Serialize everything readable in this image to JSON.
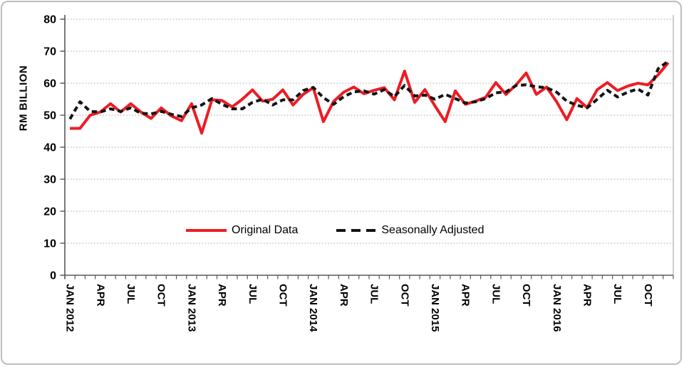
{
  "chart_data": {
    "type": "line",
    "title": "",
    "ylabel": "RM BILLION",
    "ylim": [
      0,
      80
    ],
    "ytick_step": 10,
    "yticks": [
      0,
      10,
      20,
      30,
      40,
      50,
      60,
      70,
      80
    ],
    "grid": "horizontal-dotted",
    "legend_position": "inside-lower-center",
    "n_months": 60,
    "x_label_every_months": 3,
    "x_labels": [
      "JAN 2012",
      "APR",
      "JUL",
      "OCT",
      "JAN 2013",
      "APR",
      "JUL",
      "OCT",
      "JAN 2014",
      "APR",
      "JUL",
      "OCT",
      "JAN 2015",
      "APR",
      "JUL",
      "OCT",
      "JAN 2016",
      "APR",
      "JUL",
      "OCT"
    ],
    "x_range_note": "monthly data JAN 2012 - DEC 2016",
    "series": [
      {
        "name": "Original Data",
        "color": "#ed1c24",
        "style": "solid",
        "values": [
          45.9,
          45.9,
          50.0,
          51.0,
          53.6,
          51.0,
          53.6,
          51.0,
          49.0,
          52.3,
          49.8,
          48.3,
          53.6,
          44.4,
          54.8,
          54.6,
          52.6,
          55.0,
          57.9,
          54.4,
          55.0,
          57.9,
          53.2,
          56.5,
          58.6,
          48.0,
          54.3,
          57.2,
          58.8,
          56.7,
          57.8,
          58.6,
          54.8,
          63.8,
          54.0,
          58.0,
          52.9,
          48.0,
          57.6,
          53.4,
          54.4,
          55.6,
          60.2,
          56.5,
          59.5,
          63.2,
          56.5,
          58.8,
          54.2,
          48.6,
          55.2,
          52.4,
          58.0,
          60.2,
          57.7,
          59.1,
          60.0,
          59.5,
          62.6,
          66.4
        ]
      },
      {
        "name": "Seasonally Adjusted",
        "color": "#141414",
        "style": "dashed",
        "values": [
          48.8,
          54.2,
          51.2,
          51.0,
          52.0,
          51.2,
          52.3,
          50.6,
          50.4,
          51.2,
          50.3,
          49.6,
          52.3,
          53.2,
          55.2,
          53.4,
          52.0,
          52.0,
          54.0,
          55.0,
          53.2,
          54.8,
          54.8,
          57.7,
          58.7,
          55.5,
          53.4,
          55.8,
          57.3,
          57.6,
          56.6,
          58.0,
          55.8,
          59.3,
          56.0,
          56.3,
          55.0,
          56.5,
          55.2,
          53.8,
          54.2,
          55.2,
          57.0,
          57.3,
          59.3,
          59.5,
          58.9,
          58.6,
          57.2,
          54.4,
          53.1,
          52.3,
          55.0,
          57.8,
          55.7,
          57.2,
          58.2,
          56.3,
          64.5,
          66.9
        ]
      }
    ],
    "colors": {
      "gridline": "#a6a6a6",
      "axis": "#595959",
      "plot_right_border": "#c0c0c0",
      "text": "#000000"
    }
  }
}
